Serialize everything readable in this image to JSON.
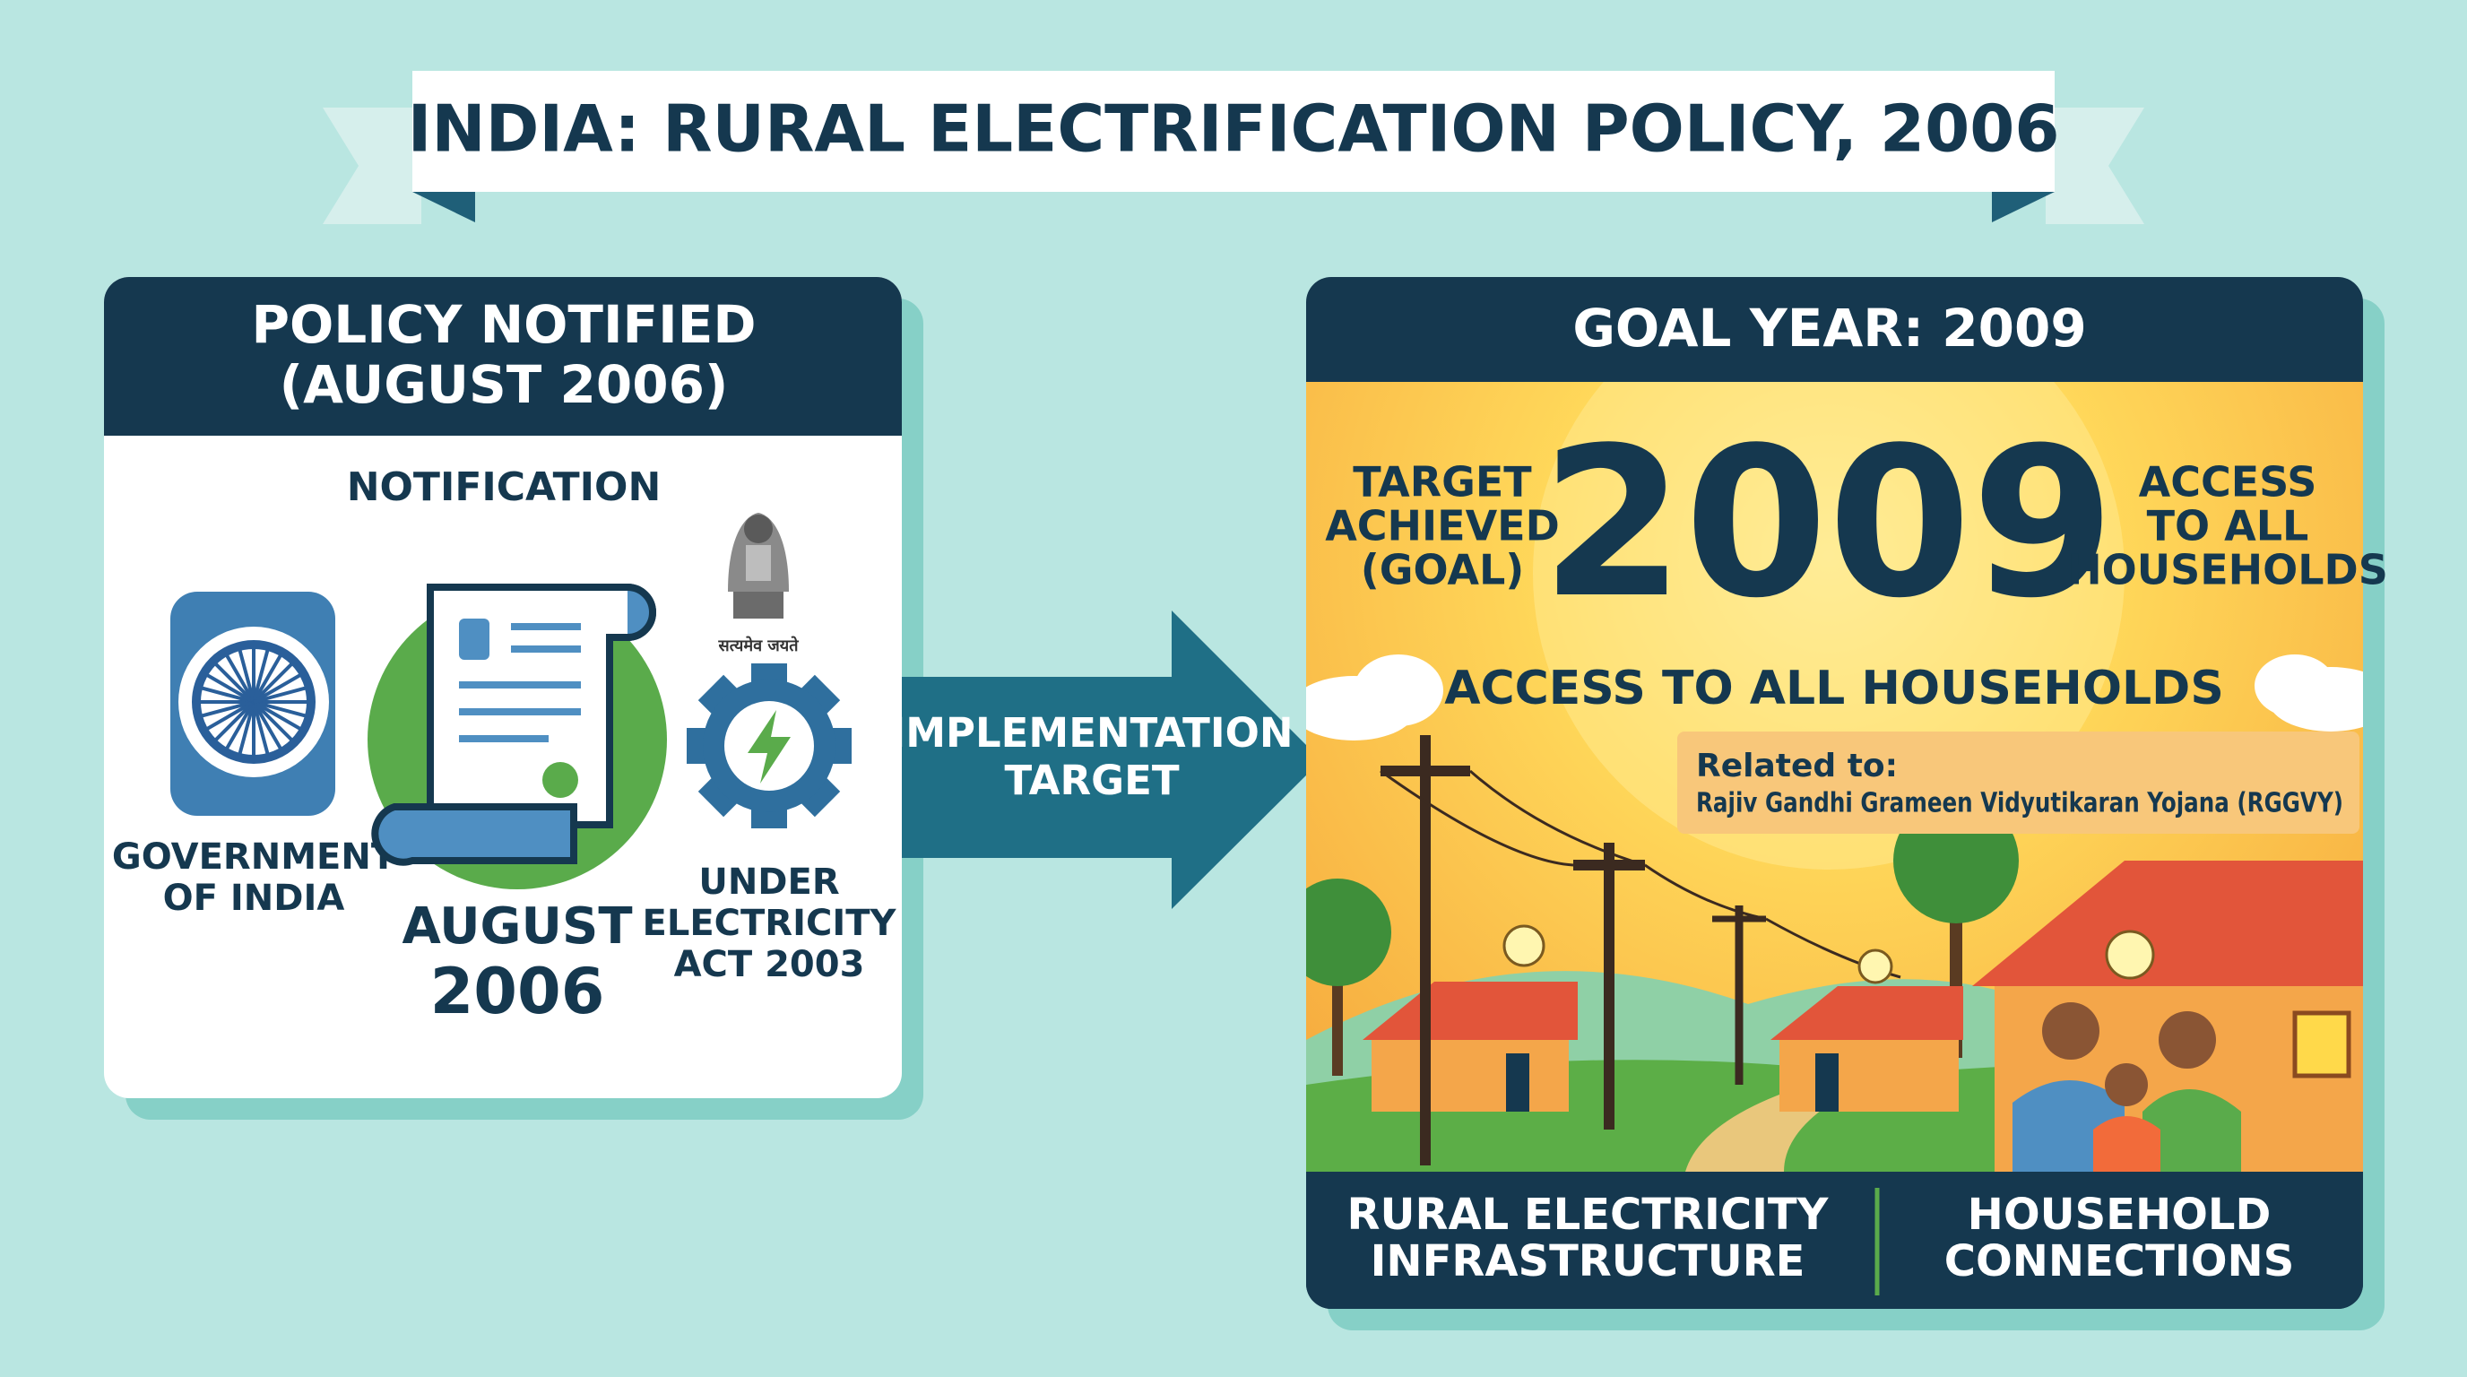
{
  "title": "INDIA: RURAL ELECTRIFICATION POLICY, 2006",
  "left_panel": {
    "header": [
      "POLICY NOTIFIED",
      "(AUGUST 2006)"
    ],
    "notification": "NOTIFICATION",
    "government": [
      "GOVERNMENT",
      "OF INDIA"
    ],
    "date": [
      "AUGUST",
      "2006"
    ],
    "emblem_motto": "सत्यमेव जयते",
    "act": [
      "UNDER",
      "ELECTRICITY",
      "ACT 2003"
    ]
  },
  "arrow_label": [
    "IMPLEMENTATION",
    "TARGET"
  ],
  "right_panel": {
    "header": "GOAL YEAR: 2009",
    "left_note": [
      "TARGET",
      "ACHIEVED",
      "(GOAL)"
    ],
    "year": "2009",
    "right_note": [
      "ACCESS",
      "TO ALL",
      "HOUSEHOLDS"
    ],
    "subtitle": "ACCESS TO ALL HOUSEHOLDS",
    "related_label": "Related to:",
    "related_scheme": "Rajiv Gandhi Grameen Vidyutikaran Yojana (RGGVY)",
    "footer": [
      [
        "RURAL ELECTRICITY",
        "INFRASTRUCTURE"
      ],
      [
        "HOUSEHOLD",
        "CONNECTIONS"
      ]
    ]
  }
}
